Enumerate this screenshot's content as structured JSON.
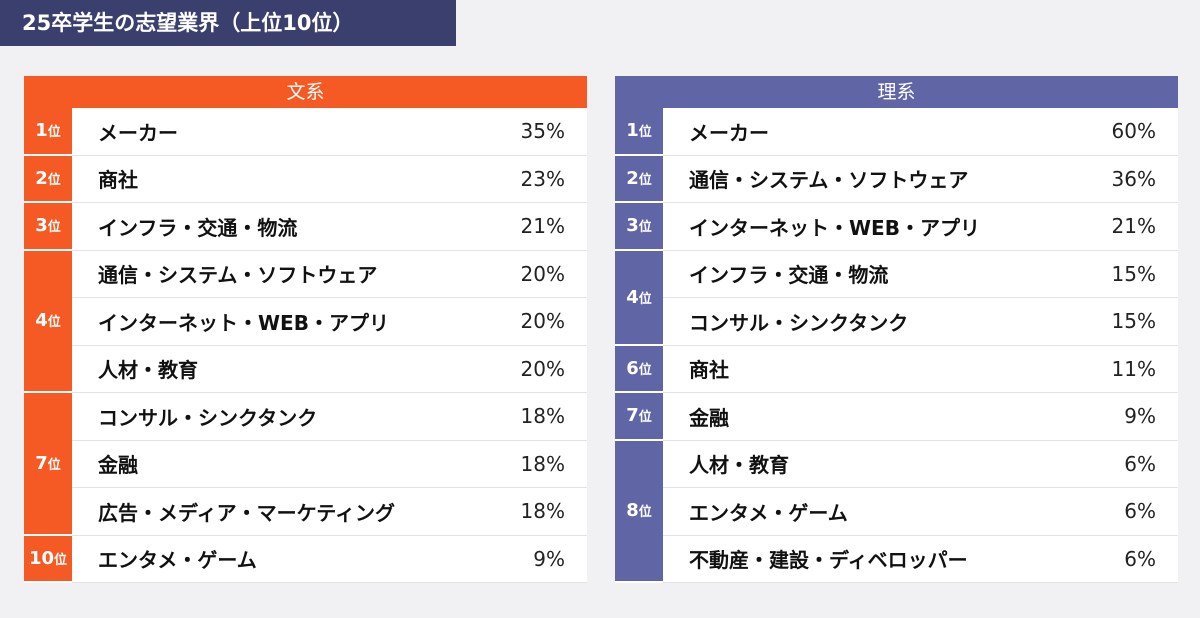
{
  "title": "25卒学生の志望業界（上位10位）",
  "rank_suffix": "位",
  "colors": {
    "title_bg": "#3b3f6e",
    "bunkei": "#f55a24",
    "rikei": "#6065a6"
  },
  "bunkei": {
    "header": "文系",
    "groups": [
      {
        "rank": "1",
        "items": [
          {
            "name": "メーカー",
            "pct": "35%"
          }
        ]
      },
      {
        "rank": "2",
        "items": [
          {
            "name": "商社",
            "pct": "23%"
          }
        ]
      },
      {
        "rank": "3",
        "items": [
          {
            "name": "インフラ・交通・物流",
            "pct": "21%"
          }
        ]
      },
      {
        "rank": "4",
        "items": [
          {
            "name": "通信・システム・ソフトウェア",
            "pct": "20%"
          },
          {
            "name": "インターネット・WEB・アプリ",
            "pct": "20%"
          },
          {
            "name": "人材・教育",
            "pct": "20%"
          }
        ]
      },
      {
        "rank": "7",
        "items": [
          {
            "name": "コンサル・シンクタンク",
            "pct": "18%"
          },
          {
            "name": "金融",
            "pct": "18%"
          },
          {
            "name": "広告・メディア・マーケティング",
            "pct": "18%"
          }
        ]
      },
      {
        "rank": "10",
        "items": [
          {
            "name": "エンタメ・ゲーム",
            "pct": "9%"
          }
        ]
      }
    ]
  },
  "rikei": {
    "header": "理系",
    "groups": [
      {
        "rank": "1",
        "items": [
          {
            "name": "メーカー",
            "pct": "60%"
          }
        ]
      },
      {
        "rank": "2",
        "items": [
          {
            "name": "通信・システム・ソフトウェア",
            "pct": "36%"
          }
        ]
      },
      {
        "rank": "3",
        "items": [
          {
            "name": "インターネット・WEB・アプリ",
            "pct": "21%"
          }
        ]
      },
      {
        "rank": "4",
        "items": [
          {
            "name": "インフラ・交通・物流",
            "pct": "15%"
          },
          {
            "name": "コンサル・シンクタンク",
            "pct": "15%"
          }
        ]
      },
      {
        "rank": "6",
        "items": [
          {
            "name": "商社",
            "pct": "11%"
          }
        ]
      },
      {
        "rank": "7",
        "items": [
          {
            "name": "金融",
            "pct": "9%"
          }
        ]
      },
      {
        "rank": "8",
        "items": [
          {
            "name": "人材・教育",
            "pct": "6%"
          },
          {
            "name": "エンタメ・ゲーム",
            "pct": "6%"
          },
          {
            "name": "不動産・建設・ディベロッパー",
            "pct": "6%"
          }
        ]
      }
    ]
  }
}
